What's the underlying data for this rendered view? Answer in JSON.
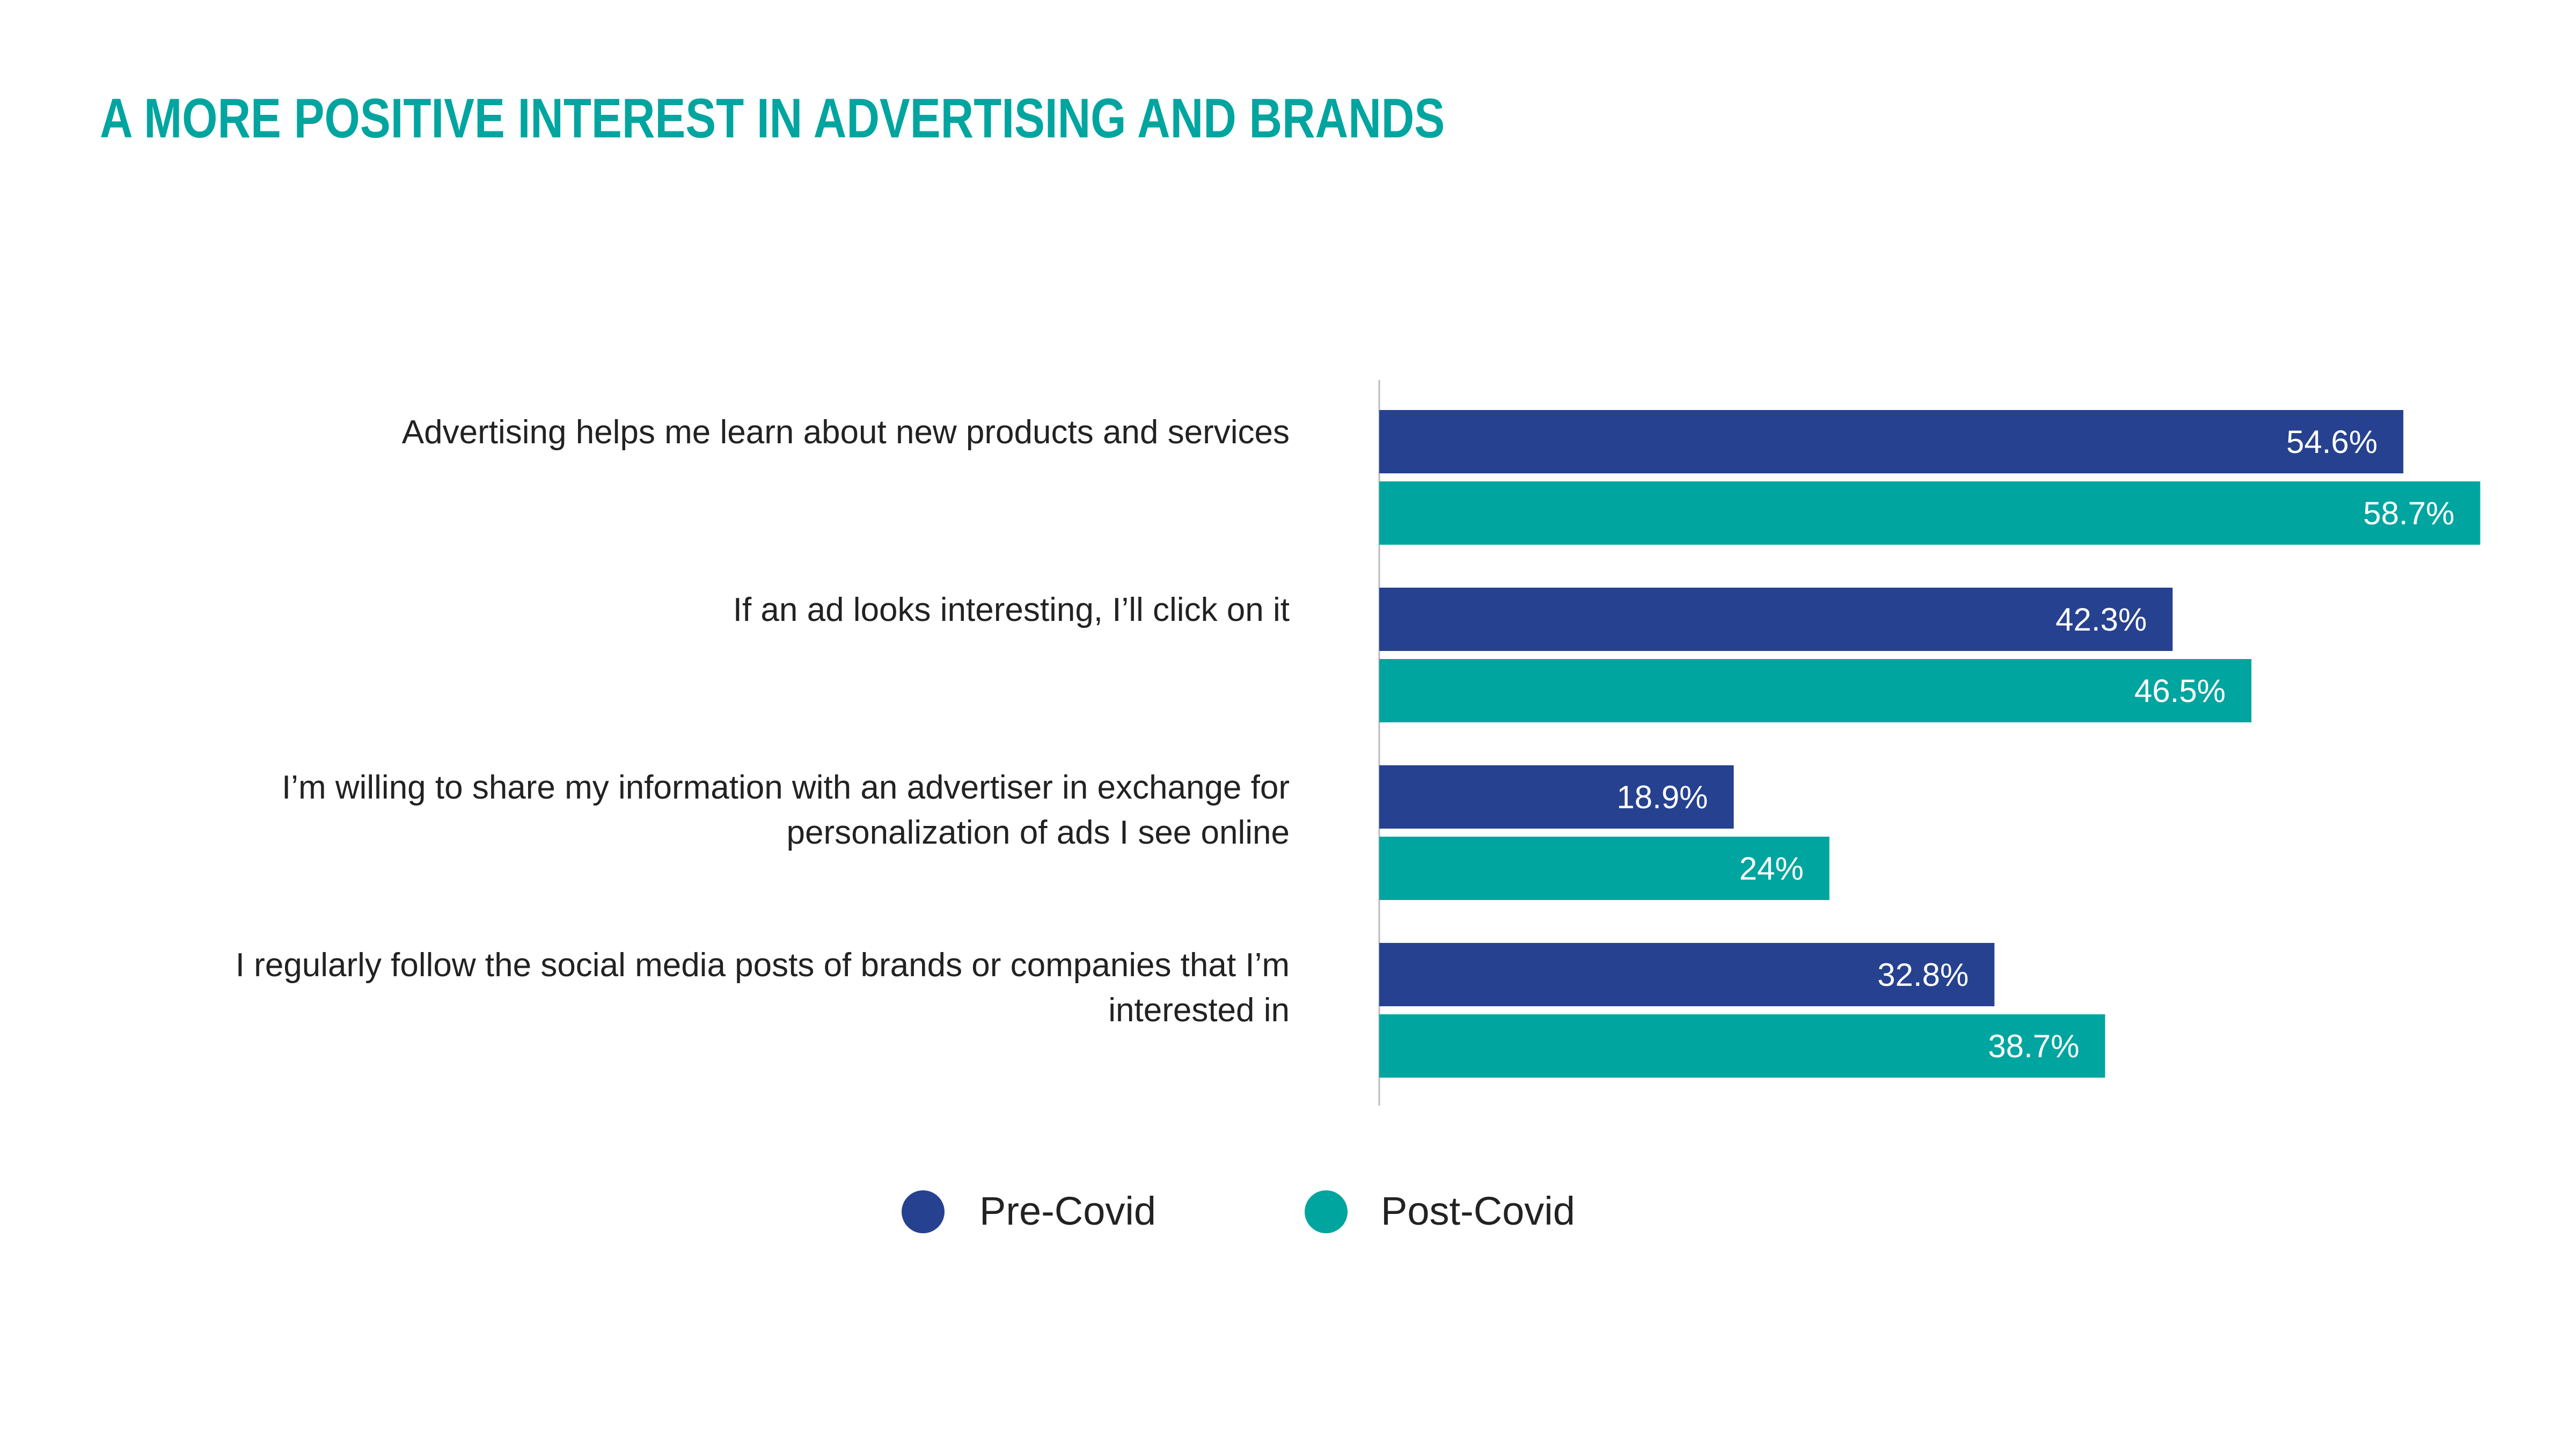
{
  "chart_data": {
    "type": "bar",
    "orientation": "horizontal",
    "title": "A MORE POSITIVE INTEREST IN ADVERTISING AND BRANDS",
    "categories": [
      [
        "Advertising helps me learn about new products and services"
      ],
      [
        "If an ad looks interesting, I’ll click on it"
      ],
      [
        "I’m willing to share my information with an advertiser in exchange for",
        "personalization of ads I see online"
      ],
      [
        "I regularly follow the social media posts of brands or companies that I’m",
        "interested in"
      ]
    ],
    "series": [
      {
        "name": "Pre-Covid",
        "color": "#26418f",
        "values": [
          54.6,
          42.3,
          18.9,
          32.8
        ],
        "labels": [
          "54.6%",
          "42.3%",
          "18.9%",
          "32.8%"
        ]
      },
      {
        "name": "Post-Covid",
        "color": "#00a5a0",
        "values": [
          58.7,
          46.5,
          24,
          38.7
        ],
        "labels": [
          "58.7%",
          "46.5%",
          "24%",
          "38.7%"
        ]
      }
    ],
    "xlabel": "",
    "ylabel": "",
    "unit": "%",
    "grid": false,
    "legend_placement": "bottom-center",
    "title_color": "#00a5a0"
  }
}
